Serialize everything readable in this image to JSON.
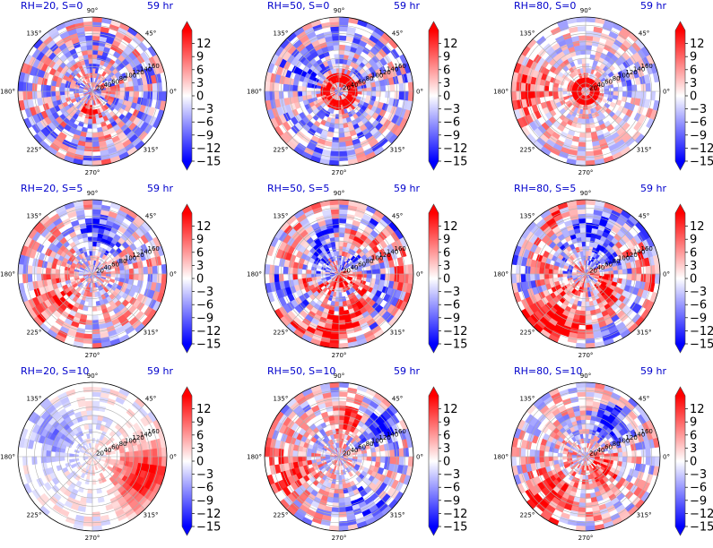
{
  "chart_data": {
    "type": "heatmap",
    "projection": "polar",
    "layout": {
      "rows": 3,
      "cols": 3
    },
    "time_label": "59 hr",
    "angle_ticks": [
      "90°",
      "45°",
      "0°",
      "315°",
      "270°",
      "225°",
      "180°",
      "135°"
    ],
    "radius_ticks": [
      "20",
      "40",
      "60",
      "80",
      "100",
      "120",
      "140",
      "160"
    ],
    "radius_range": [
      0,
      180
    ],
    "colorbar": {
      "ticks": [
        "12",
        "9",
        "6",
        "3",
        "0",
        "−3",
        "−6",
        "−9",
        "−12",
        "−15"
      ],
      "range": [
        -15,
        15
      ],
      "extend": "both",
      "colormap": "bwr",
      "colors": {
        "low": "#0000ff",
        "mid": "#ffffff",
        "high": "#ff0000"
      }
    },
    "panels": [
      {
        "title": "RH=20, S=0",
        "time": "59 hr",
        "field": {
          "pattern": "scatter",
          "bias": -0.05,
          "amp": 0.75,
          "features": [
            {
              "r": 0.28,
              "theta": 265,
              "w": 0.11,
              "v": 0.95
            }
          ]
        }
      },
      {
        "title": "RH=50, S=0",
        "time": "59 hr",
        "field": {
          "pattern": "ring",
          "bias": -0.15,
          "amp": 0.7,
          "features": [
            {
              "r": 0.18,
              "theta": 0,
              "w": 0.08,
              "v": 1.0,
              "ring": true
            },
            {
              "r": 0.45,
              "theta": 150,
              "w": 0.25,
              "v": -0.4
            }
          ]
        }
      },
      {
        "title": "RH=80, S=0",
        "time": "59 hr",
        "field": {
          "pattern": "ring",
          "bias": 0.05,
          "amp": 0.5,
          "features": [
            {
              "r": 0.13,
              "theta": 0,
              "w": 0.06,
              "v": 1.0,
              "ring": true
            },
            {
              "r": 0.8,
              "theta": 180,
              "w": 0.35,
              "v": 0.55
            },
            {
              "r": 0.6,
              "theta": 20,
              "w": 0.3,
              "v": -0.25
            }
          ]
        }
      },
      {
        "title": "RH=20, S=5",
        "time": "59 hr",
        "field": {
          "pattern": "mixed",
          "bias": 0.05,
          "amp": 0.65,
          "features": [
            {
              "r": 0.55,
              "theta": 75,
              "w": 0.25,
              "v": -0.85
            },
            {
              "r": 0.65,
              "theta": 215,
              "w": 0.3,
              "v": 0.65
            }
          ]
        }
      },
      {
        "title": "RH=50, S=5",
        "time": "59 hr",
        "field": {
          "pattern": "spiral",
          "bias": 0.05,
          "amp": 0.7,
          "features": [
            {
              "r": 0.75,
              "theta": 270,
              "w": 0.3,
              "v": 0.75
            },
            {
              "r": 0.35,
              "theta": 130,
              "w": 0.25,
              "v": -0.5
            },
            {
              "r": 0.12,
              "theta": 300,
              "w": 0.1,
              "v": 0.9
            }
          ]
        }
      },
      {
        "title": "RH=80, S=5",
        "time": "59 hr",
        "field": {
          "pattern": "spiral",
          "bias": 0.05,
          "amp": 0.65,
          "features": [
            {
              "r": 0.5,
              "theta": 70,
              "w": 0.25,
              "v": -0.85
            },
            {
              "r": 0.7,
              "theta": 230,
              "w": 0.3,
              "v": 0.7
            },
            {
              "r": 0.35,
              "theta": 320,
              "w": 0.2,
              "v": 0.6
            }
          ]
        }
      },
      {
        "title": "RH=20, S=10",
        "time": "59 hr",
        "field": {
          "pattern": "smooth",
          "bias": 0.0,
          "amp": 0.45,
          "features": [
            {
              "r": 0.75,
              "theta": 340,
              "w": 0.4,
              "v": 0.75
            },
            {
              "r": 0.6,
              "theta": 150,
              "w": 0.35,
              "v": -0.35
            }
          ]
        }
      },
      {
        "title": "RH=50, S=10",
        "time": "59 hr",
        "field": {
          "pattern": "mixed",
          "bias": 0.0,
          "amp": 0.6,
          "features": [
            {
              "r": 0.55,
              "theta": 75,
              "w": 0.2,
              "v": 0.95
            },
            {
              "r": 0.65,
              "theta": 40,
              "w": 0.25,
              "v": -0.85
            },
            {
              "r": 0.75,
              "theta": 195,
              "w": 0.35,
              "v": 0.55
            },
            {
              "r": 0.75,
              "theta": 300,
              "w": 0.3,
              "v": -0.45
            }
          ]
        }
      },
      {
        "title": "RH=80, S=10",
        "time": "59 hr",
        "field": {
          "pattern": "mixed",
          "bias": 0.05,
          "amp": 0.6,
          "features": [
            {
              "r": 0.6,
              "theta": 55,
              "w": 0.25,
              "v": -0.75
            },
            {
              "r": 0.7,
              "theta": 230,
              "w": 0.35,
              "v": 0.6
            },
            {
              "r": 0.3,
              "theta": 330,
              "w": 0.2,
              "v": 0.6
            }
          ]
        }
      }
    ]
  }
}
